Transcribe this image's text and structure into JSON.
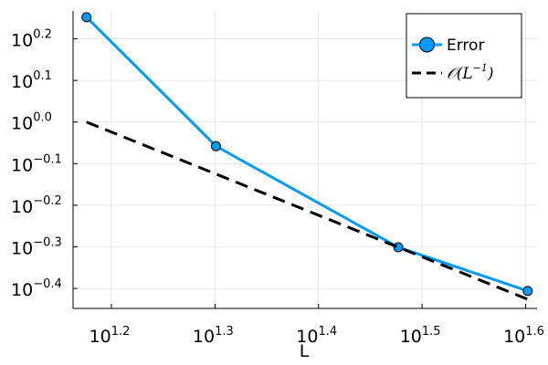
{
  "chart_data": {
    "type": "line",
    "xlabel": "L",
    "ylabel": "",
    "x_scale": "log10",
    "y_scale": "log10",
    "x_tick_base": "10",
    "x_tick_exponents": [
      "1.2",
      "1.3",
      "1.4",
      "1.5",
      "1.6"
    ],
    "y_tick_base": "10",
    "y_tick_exponents": [
      "0.2",
      "0.1",
      "0.0",
      "−0.1",
      "−0.2",
      "−0.3",
      "−0.4"
    ],
    "x_log_range": [
      1.163,
      1.611
    ],
    "y_log_range": [
      -0.448,
      0.267
    ],
    "grid": true,
    "legend_position": "top-right",
    "series": [
      {
        "name": "Error",
        "style": "solid-markers",
        "color": "#009af9",
        "log_x": [
          1.176,
          1.301,
          1.477,
          1.602
        ],
        "log_y": [
          0.252,
          -0.058,
          -0.301,
          -0.406
        ]
      },
      {
        "name": "𝒪(L⁻¹)",
        "style": "dashed",
        "color": "#000000",
        "log_x": [
          1.176,
          1.602
        ],
        "log_y": [
          0.0,
          -0.426
        ]
      }
    ],
    "legend": {
      "error_label": "Error",
      "ref_prefix": "𝒪(",
      "ref_base": "L",
      "ref_exp": "−1",
      "ref_suffix": ")"
    }
  }
}
